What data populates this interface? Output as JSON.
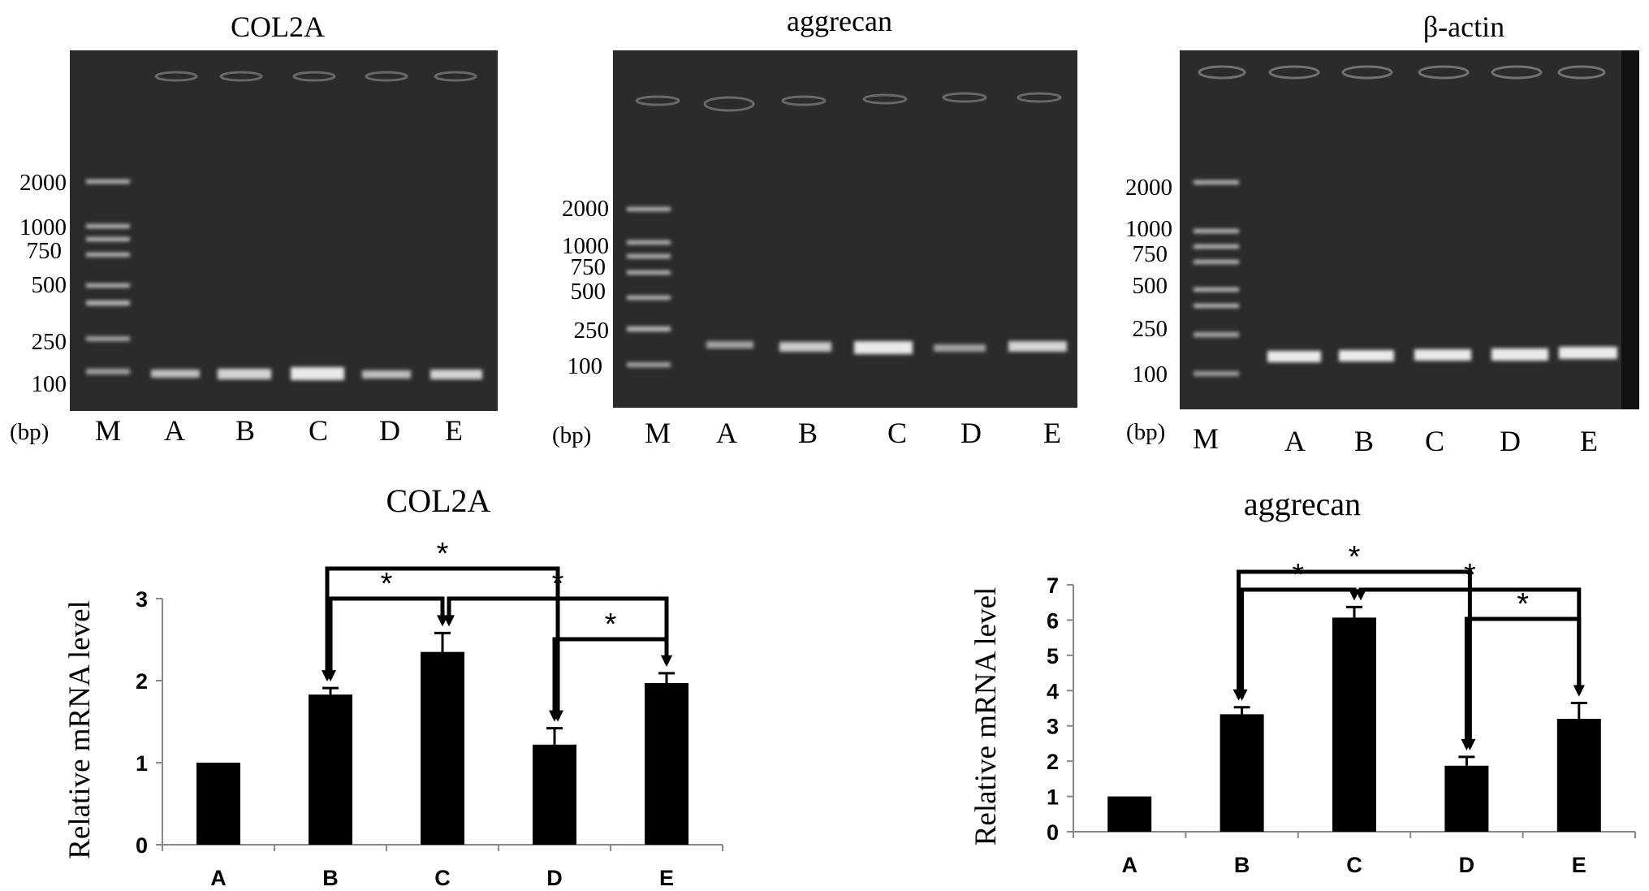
{
  "gels": [
    {
      "title": "COL2A",
      "unit_label": "(bp)",
      "marker_labels": [
        "2000",
        "1000",
        "750",
        "500",
        "250",
        "100"
      ],
      "lane_labels": [
        "M",
        "A",
        "B",
        "C",
        "D",
        "E"
      ]
    },
    {
      "title": "aggrecan",
      "unit_label": "(bp)",
      "marker_labels": [
        "2000",
        "1000",
        "750",
        "500",
        "250",
        "100"
      ],
      "lane_labels": [
        "M",
        "A",
        "B",
        "C",
        "D",
        "E"
      ]
    },
    {
      "title": "β-actin",
      "unit_label": "(bp)",
      "marker_labels": [
        "2000",
        "1000",
        "750",
        "500",
        "250",
        "100"
      ],
      "lane_labels": [
        "M",
        "A",
        "B",
        "C",
        "D",
        "E"
      ]
    }
  ],
  "chart_data": [
    {
      "type": "bar",
      "title": "COL2A",
      "xlabel": "",
      "ylabel": "Relative mRNA level",
      "categories": [
        "A",
        "B",
        "C",
        "D",
        "E"
      ],
      "values": [
        1.0,
        1.83,
        2.35,
        1.22,
        1.97
      ],
      "errors": [
        0,
        0.08,
        0.23,
        0.2,
        0.12
      ],
      "ylim": [
        0,
        3
      ],
      "yticks": [
        "0",
        "1",
        "2",
        "3"
      ],
      "significance": [
        {
          "from": "B",
          "to": "D",
          "label": "*"
        },
        {
          "from": "B",
          "to": "C",
          "label": "*"
        },
        {
          "from": "C",
          "to": "E",
          "label": "*"
        },
        {
          "from": "D",
          "to": "E",
          "label": "*"
        }
      ]
    },
    {
      "type": "bar",
      "title": "aggrecan",
      "xlabel": "",
      "ylabel": "Relative mRNA level",
      "categories": [
        "A",
        "B",
        "C",
        "D",
        "E"
      ],
      "values": [
        1.0,
        3.33,
        6.07,
        1.87,
        3.2
      ],
      "errors": [
        0,
        0.2,
        0.3,
        0.25,
        0.45
      ],
      "ylim": [
        0,
        7
      ],
      "yticks": [
        "0",
        "1",
        "2",
        "3",
        "4",
        "5",
        "6",
        "7"
      ],
      "significance": [
        {
          "from": "B",
          "to": "D",
          "label": "*"
        },
        {
          "from": "B",
          "to": "C",
          "label": "*"
        },
        {
          "from": "C",
          "to": "E",
          "label": "*"
        },
        {
          "from": "D",
          "to": "E",
          "label": "*"
        }
      ]
    }
  ]
}
